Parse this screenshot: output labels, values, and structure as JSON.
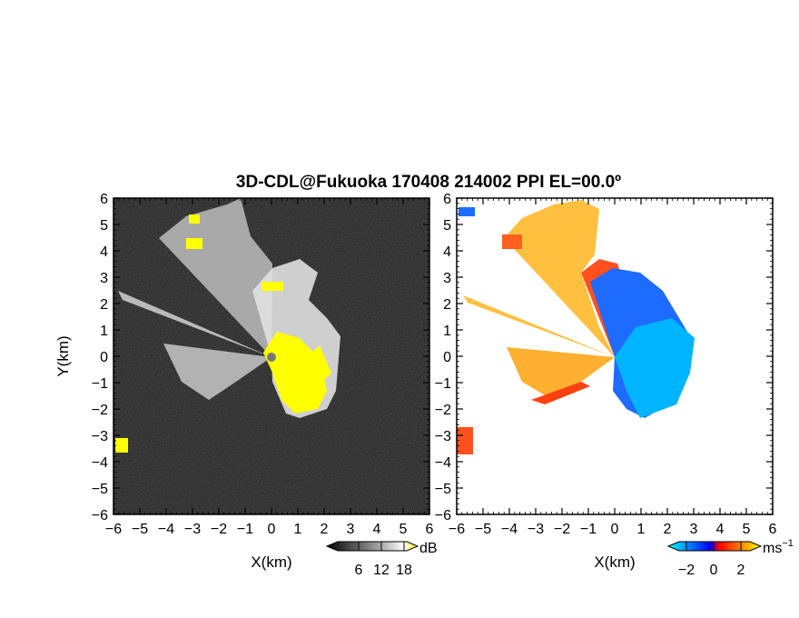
{
  "chart_data": [
    {
      "type": "heatmap",
      "title": "3D-CDL@Fukuoka 170408 214002 PPI EL=00.0º",
      "xlabel": "X(km)",
      "ylabel": "Y(km)",
      "xlim": [
        -6,
        6
      ],
      "ylim": [
        -6,
        6
      ],
      "xticks": [
        "−6",
        "−5",
        "−4",
        "−3",
        "−2",
        "−1",
        "0",
        "1",
        "2",
        "3",
        "4",
        "5",
        "6"
      ],
      "yticks": [
        "6",
        "5",
        "4",
        "3",
        "2",
        "1",
        "0",
        "−1",
        "−2",
        "−3",
        "−4",
        "−5",
        "−6"
      ],
      "colorbar": {
        "unit": "dB",
        "ticks": [
          "6",
          "12",
          "18"
        ],
        "colors": [
          "#000000",
          "#555555",
          "#aaaaaa",
          "#ffffff",
          "#ffff00"
        ]
      }
    },
    {
      "type": "heatmap",
      "xlabel": "X(km)",
      "xlim": [
        -6,
        6
      ],
      "ylim": [
        -6,
        6
      ],
      "xticks": [
        "−6",
        "−5",
        "−4",
        "−3",
        "−2",
        "−1",
        "0",
        "1",
        "2",
        "3",
        "4",
        "5",
        "6"
      ],
      "yticks": [
        "6",
        "5",
        "4",
        "3",
        "2",
        "1",
        "0",
        "−1",
        "−2",
        "−3",
        "−4",
        "−5",
        "−6"
      ],
      "colorbar": {
        "unit": "ms",
        "unit_exp": "−1",
        "ticks": [
          "−2",
          "0",
          "2"
        ],
        "colors": [
          "#00ffff",
          "#0000ff",
          "#ff0000",
          "#ffff00"
        ]
      }
    }
  ]
}
